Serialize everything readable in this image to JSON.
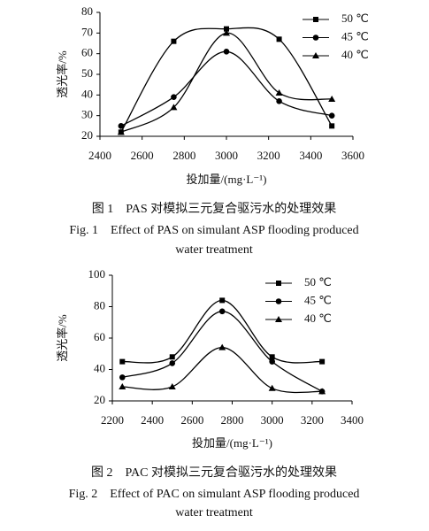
{
  "chart_data": [
    {
      "type": "line",
      "y_label": "透光率/%",
      "x_label": "投加量/(mg·L⁻¹)",
      "caption_cn": "图 1　PAS 对模拟三元复合驱污水的处理效果",
      "caption_en": "Fig. 1　Effect of PAS on simulant ASP flooding produced",
      "caption_en_2": "water treatment",
      "x": [
        2500,
        2750,
        3000,
        3250,
        3500
      ],
      "series": [
        {
          "name": "50 ℃",
          "color": "#000000",
          "marker": "square",
          "values": [
            22,
            66,
            72,
            67,
            25
          ]
        },
        {
          "name": "45 ℃",
          "color": "#000000",
          "marker": "circle",
          "values": [
            25,
            39,
            61,
            37,
            30
          ]
        },
        {
          "name": "40 ℃",
          "color": "#000000",
          "marker": "triangle",
          "values": [
            22,
            34,
            70,
            41,
            38
          ]
        }
      ],
      "xlim": [
        2400,
        3600
      ],
      "xticks": [
        2400,
        2600,
        2800,
        3000,
        3200,
        3400,
        3600
      ],
      "ylim": [
        20,
        80
      ],
      "yticks": [
        20,
        30,
        40,
        50,
        60,
        70,
        80
      ],
      "grid": false,
      "legend": "upper right"
    },
    {
      "type": "line",
      "y_label": "透光率/%",
      "x_label": "投加量/(mg·L⁻¹)",
      "caption_cn": "图 2　PAC 对模拟三元复合驱污水的处理效果",
      "caption_en": "Fig. 2　Effect of PAC on simulant ASP flooding produced",
      "caption_en_2": "water treatment",
      "x": [
        2250,
        2500,
        2750,
        3000,
        3250
      ],
      "series": [
        {
          "name": "50 ℃",
          "color": "#000000",
          "marker": "square",
          "values": [
            45,
            48,
            84,
            48,
            45
          ]
        },
        {
          "name": "45 ℃",
          "color": "#000000",
          "marker": "circle",
          "values": [
            35,
            44,
            77,
            45,
            26
          ]
        },
        {
          "name": "40 ℃",
          "color": "#000000",
          "marker": "triangle",
          "values": [
            29,
            29,
            54,
            28,
            26
          ]
        }
      ],
      "xlim": [
        2200,
        3400
      ],
      "xticks": [
        2200,
        2400,
        2600,
        2800,
        3000,
        3200,
        3400
      ],
      "ylim": [
        20,
        100
      ],
      "yticks": [
        20,
        40,
        60,
        80,
        100
      ],
      "grid": false,
      "legend": "upper right"
    }
  ]
}
